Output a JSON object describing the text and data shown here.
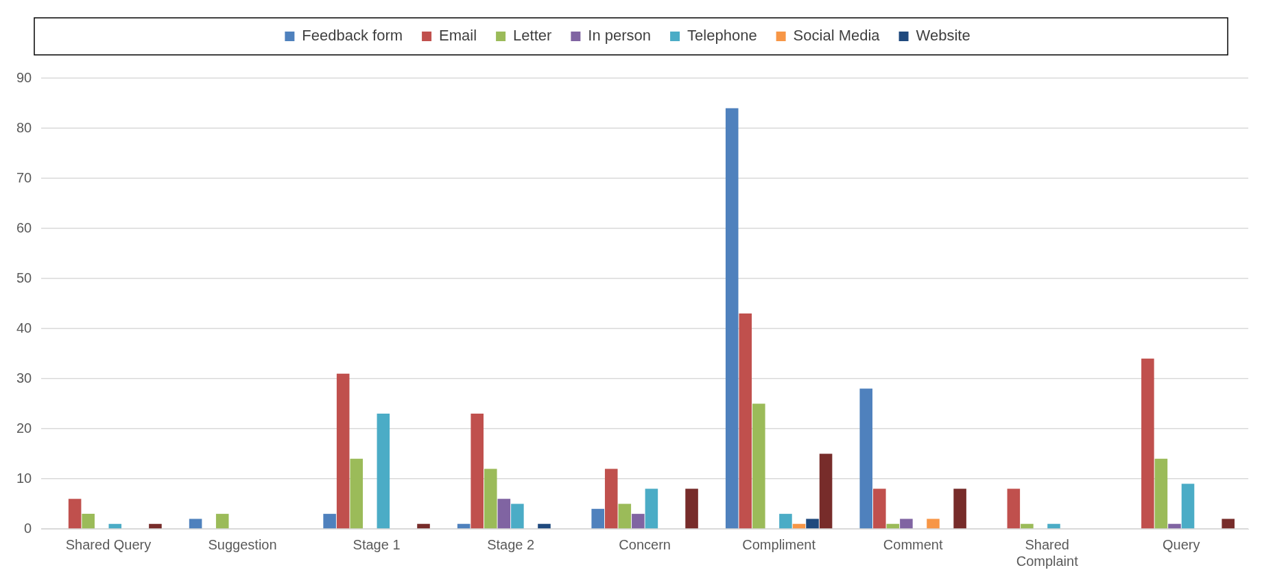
{
  "chart_data": {
    "type": "bar",
    "categories": [
      "Shared Query",
      "Suggestion",
      "Stage 1",
      "Stage 2",
      "Concern",
      "Compliment",
      "Comment",
      "Shared Complaint",
      "Query"
    ],
    "series": [
      {
        "name": "Feedback form",
        "color": "#4f81bd",
        "values": [
          0,
          2,
          3,
          1,
          4,
          84,
          28,
          0,
          0
        ]
      },
      {
        "name": "Email",
        "color": "#c0504d",
        "values": [
          6,
          0,
          31,
          23,
          12,
          43,
          8,
          8,
          34
        ]
      },
      {
        "name": "Letter",
        "color": "#9bbb59",
        "values": [
          3,
          3,
          14,
          12,
          5,
          25,
          1,
          1,
          14
        ]
      },
      {
        "name": "In person",
        "color": "#8064a2",
        "values": [
          0,
          0,
          0,
          6,
          3,
          0,
          2,
          0,
          1
        ]
      },
      {
        "name": "Telephone",
        "color": "#4bacc6",
        "values": [
          1,
          0,
          23,
          5,
          8,
          3,
          0,
          1,
          9
        ]
      },
      {
        "name": "Social Media",
        "color": "#f79646",
        "values": [
          0,
          0,
          0,
          0,
          0,
          1,
          2,
          0,
          0
        ]
      },
      {
        "name": "Website",
        "color": "#1f497d",
        "values": [
          0,
          0,
          0,
          1,
          0,
          2,
          0,
          0,
          0
        ]
      },
      {
        "color": "#772c2a",
        "values": [
          1,
          0,
          1,
          0,
          8,
          15,
          8,
          0,
          2
        ]
      }
    ],
    "ylim": [
      0,
      90
    ],
    "yticks": [
      0,
      10,
      20,
      30,
      40,
      50,
      60,
      70,
      80,
      90
    ],
    "grid": "y",
    "legend": "top"
  }
}
